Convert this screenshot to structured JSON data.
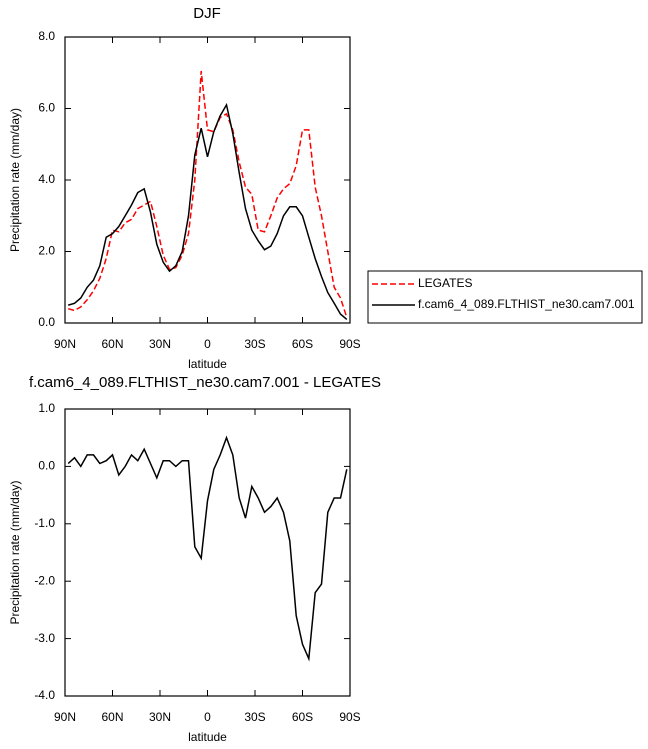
{
  "chart_data": [
    {
      "type": "line",
      "title": "DJF",
      "xlabel": "latitude",
      "ylabel": "Precipitation rate (mm/day)",
      "x": [
        88,
        84,
        80,
        76,
        72,
        68,
        64,
        60,
        56,
        52,
        48,
        44,
        40,
        36,
        32,
        28,
        24,
        20,
        16,
        12,
        8,
        4,
        0,
        -4,
        -8,
        -12,
        -16,
        -20,
        -24,
        -28,
        -32,
        -36,
        -40,
        -44,
        -48,
        -52,
        -56,
        -60,
        -64,
        -68,
        -72,
        -76,
        -80,
        -84,
        -88
      ],
      "series": [
        {
          "name": "LEGATES",
          "color": "#ff0000",
          "linestyle": "dashed",
          "values": [
            0.4,
            0.35,
            0.45,
            0.65,
            0.9,
            1.25,
            1.8,
            2.6,
            2.55,
            2.8,
            2.9,
            3.2,
            3.3,
            3.4,
            2.7,
            1.9,
            1.5,
            1.55,
            1.9,
            2.5,
            4.0,
            7.05,
            5.4,
            5.35,
            5.75,
            5.85,
            5.4,
            4.5,
            3.8,
            3.6,
            2.6,
            2.55,
            3.0,
            3.5,
            3.75,
            3.9,
            4.4,
            5.4,
            5.4,
            3.8,
            3.0,
            2.0,
            1.0,
            0.7,
            0.15
          ]
        },
        {
          "name": "f.cam6_4_089.FLTHIST_ne30.cam7.001",
          "color": "#000000",
          "linestyle": "solid",
          "values": [
            0.5,
            0.55,
            0.7,
            1.0,
            1.2,
            1.6,
            2.4,
            2.5,
            2.7,
            3.0,
            3.3,
            3.65,
            3.75,
            3.1,
            2.2,
            1.7,
            1.45,
            1.6,
            2.0,
            3.0,
            4.7,
            5.45,
            4.65,
            5.35,
            5.8,
            6.1,
            5.3,
            4.2,
            3.2,
            2.6,
            2.3,
            2.05,
            2.15,
            2.5,
            3.0,
            3.25,
            3.25,
            3.0,
            2.4,
            1.8,
            1.3,
            0.85,
            0.55,
            0.25,
            0.1
          ]
        }
      ],
      "legend": "right",
      "xlim": [
        90,
        -90
      ],
      "xticks": [
        {
          "value": 90,
          "label": "90N"
        },
        {
          "value": 60,
          "label": "60N"
        },
        {
          "value": 30,
          "label": "30N"
        },
        0,
        {
          "value": -30,
          "label": "30S"
        },
        {
          "value": -60,
          "label": "60S"
        },
        {
          "value": -90,
          "label": "90S"
        }
      ],
      "ylim": [
        0,
        8
      ],
      "yticks": [
        {
          "value": 0,
          "label": "0.0"
        },
        {
          "value": 2,
          "label": "2.0"
        },
        {
          "value": 4,
          "label": "4.0"
        },
        {
          "value": 6,
          "label": "6.0"
        },
        {
          "value": 8,
          "label": "8.0"
        }
      ]
    },
    {
      "type": "line",
      "title": "f.cam6_4_089.FLTHIST_ne30.cam7.001 - LEGATES",
      "xlabel": "latitude",
      "ylabel": "Precipitation rate (mm/day)",
      "x": [
        88,
        84,
        80,
        76,
        72,
        68,
        64,
        60,
        56,
        52,
        48,
        44,
        40,
        36,
        32,
        28,
        24,
        20,
        16,
        12,
        8,
        4,
        0,
        -4,
        -8,
        -12,
        -16,
        -20,
        -24,
        -28,
        -32,
        -36,
        -40,
        -44,
        -48,
        -52,
        -56,
        -60,
        -64,
        -68,
        -72,
        -76,
        -80,
        -84,
        -88
      ],
      "series": [
        {
          "color": "#000000",
          "linestyle": "solid",
          "values": [
            0.05,
            0.15,
            0.0,
            0.2,
            0.2,
            0.05,
            0.1,
            0.2,
            -0.15,
            0.0,
            0.2,
            0.1,
            0.3,
            0.05,
            -0.2,
            0.1,
            0.1,
            0.0,
            0.1,
            0.1,
            -1.4,
            -1.6,
            -0.6,
            -0.05,
            0.2,
            0.5,
            0.2,
            -0.55,
            -0.9,
            -0.35,
            -0.55,
            -0.8,
            -0.7,
            -0.55,
            -0.8,
            -1.3,
            -2.6,
            -3.1,
            -3.35,
            -2.2,
            -2.05,
            -0.8,
            -0.55,
            -0.55,
            -0.05
          ]
        }
      ],
      "xlim": [
        90,
        -90
      ],
      "xticks": [
        {
          "value": 90,
          "label": "90N"
        },
        {
          "value": 60,
          "label": "60N"
        },
        {
          "value": 30,
          "label": "30N"
        },
        0,
        {
          "value": -30,
          "label": "30S"
        },
        {
          "value": -60,
          "label": "60S"
        },
        {
          "value": -90,
          "label": "90S"
        }
      ],
      "ylim": [
        -4,
        1
      ],
      "yticks": [
        {
          "value": -4,
          "label": "-4.0"
        },
        {
          "value": -3,
          "label": "-3.0"
        },
        {
          "value": -2,
          "label": "-2.0"
        },
        {
          "value": -1,
          "label": "-1.0"
        },
        {
          "value": 0,
          "label": "0.0"
        },
        {
          "value": 1,
          "label": "1.0"
        }
      ]
    }
  ]
}
